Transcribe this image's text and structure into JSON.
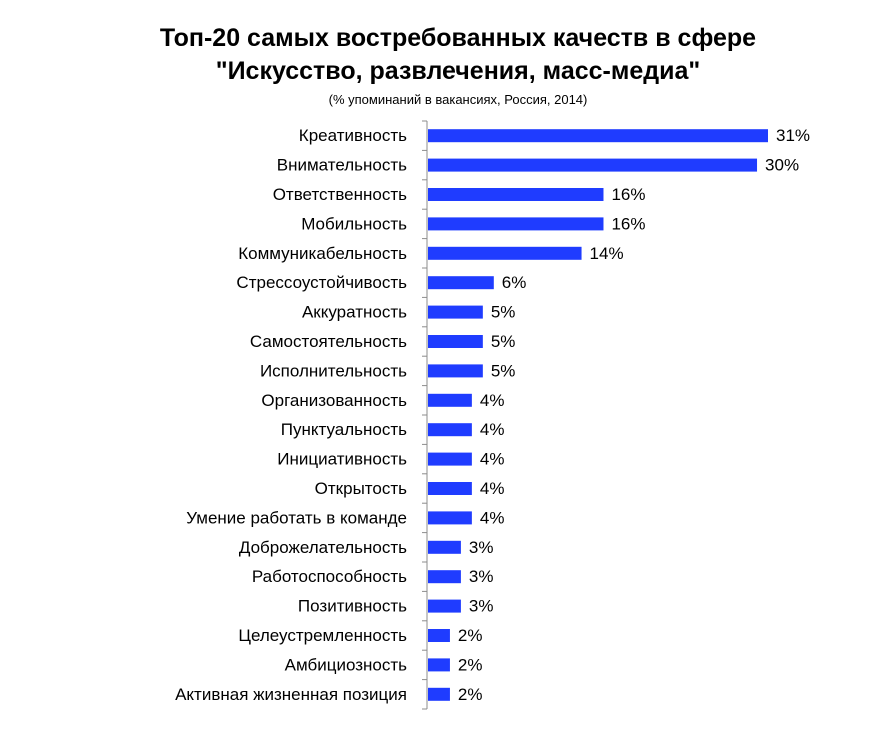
{
  "chart_data": {
    "type": "bar",
    "orientation": "horizontal",
    "title": "Топ-20 самых востребованных качеств в сфере",
    "title_line2": "\"Искусство, развлечения, масс-медиа\"",
    "subtitle": "(% упоминаний в вакансиях, Россия, 2014)",
    "xlabel": "",
    "ylabel": "",
    "xlim": [
      0,
      31
    ],
    "bar_color": "#1f3cff",
    "grid": false,
    "legend": "none",
    "categories": [
      "Креативность",
      "Внимательность",
      "Ответственность",
      "Мобильность",
      "Коммуникабельность",
      "Стрессоустойчивость",
      "Аккуратность",
      "Самостоятельность",
      "Исполнительность",
      "Организованность",
      "Пунктуальность",
      "Инициативность",
      "Открытость",
      "Умение работать в команде",
      "Доброжелательность",
      "Работоспособность",
      "Позитивность",
      "Целеустремленность",
      "Амбициозность",
      "Активная жизненная позиция"
    ],
    "values": [
      31,
      30,
      16,
      16,
      14,
      6,
      5,
      5,
      5,
      4,
      4,
      4,
      4,
      4,
      3,
      3,
      3,
      2,
      2,
      2
    ],
    "value_labels": [
      "31%",
      "30%",
      "16%",
      "16%",
      "14%",
      "6%",
      "5%",
      "5%",
      "5%",
      "4%",
      "4%",
      "4%",
      "4%",
      "4%",
      "3%",
      "3%",
      "3%",
      "2%",
      "2%",
      "2%"
    ]
  }
}
